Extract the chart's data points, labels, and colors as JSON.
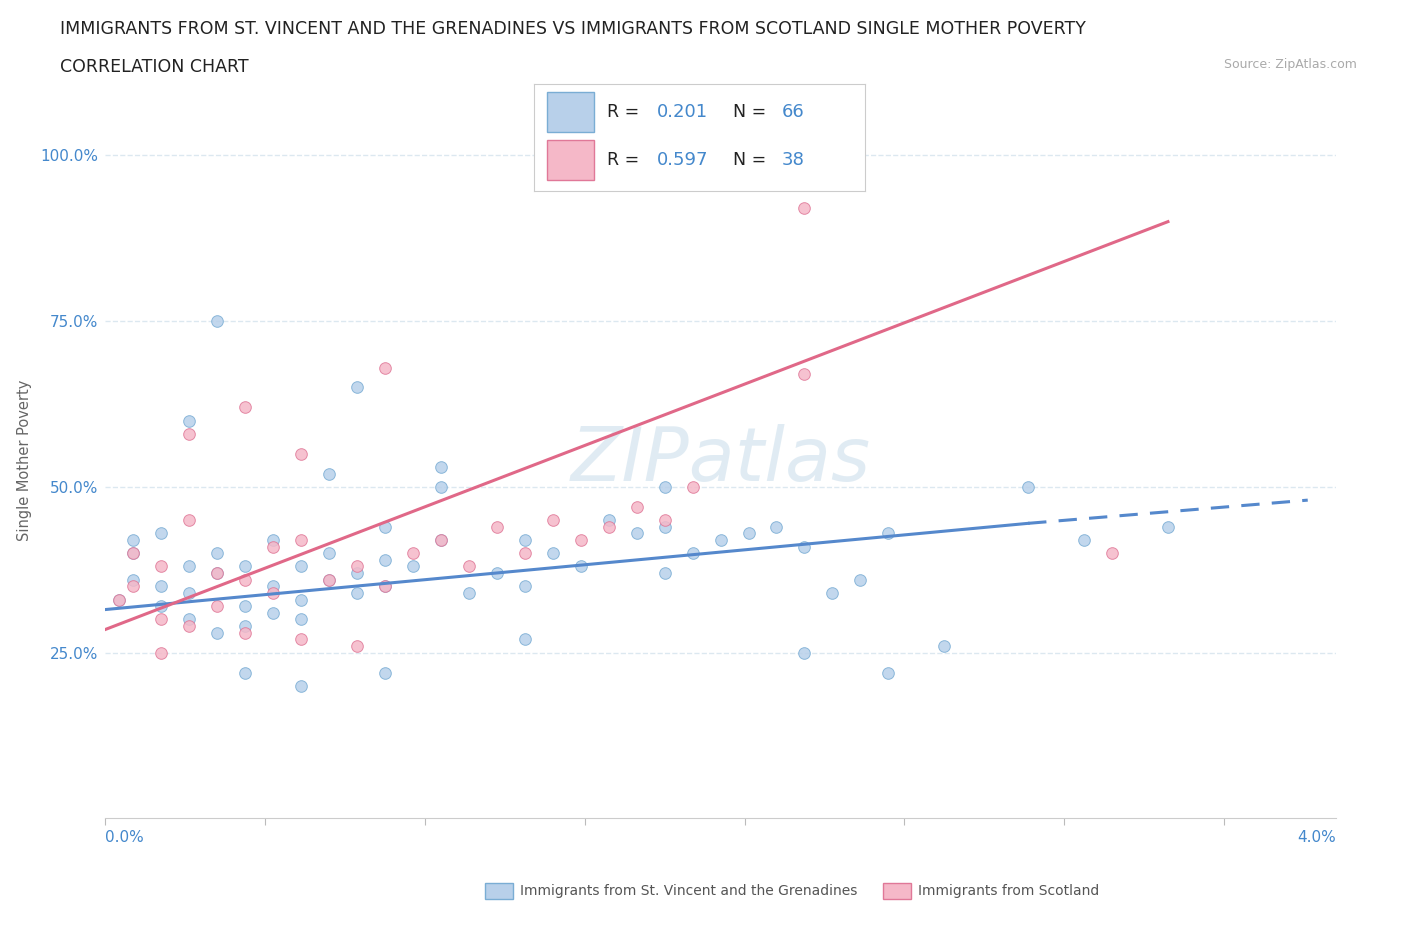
{
  "title_line1": "IMMIGRANTS FROM ST. VINCENT AND THE GRENADINES VS IMMIGRANTS FROM SCOTLAND SINGLE MOTHER POVERTY",
  "title_line2": "CORRELATION CHART",
  "source": "Source: ZipAtlas.com",
  "ylabel": "Single Mother Poverty",
  "legend_r1": "0.201",
  "legend_n1": "66",
  "legend_r2": "0.597",
  "legend_n2": "38",
  "blue_color": "#b8d0ea",
  "pink_color": "#f5b8c8",
  "blue_edge_color": "#7aadd4",
  "pink_edge_color": "#e07898",
  "blue_line_color": "#5588cc",
  "pink_line_color": "#e06888",
  "accent_color": "#4488cc",
  "blue_scatter_x": [
    0.0005,
    0.001,
    0.001,
    0.001,
    0.002,
    0.002,
    0.002,
    0.003,
    0.003,
    0.003,
    0.004,
    0.004,
    0.004,
    0.005,
    0.005,
    0.005,
    0.006,
    0.006,
    0.006,
    0.007,
    0.007,
    0.007,
    0.008,
    0.008,
    0.009,
    0.009,
    0.01,
    0.01,
    0.01,
    0.011,
    0.012,
    0.012,
    0.013,
    0.014,
    0.015,
    0.015,
    0.016,
    0.017,
    0.018,
    0.019,
    0.02,
    0.02,
    0.021,
    0.022,
    0.023,
    0.024,
    0.025,
    0.026,
    0.027,
    0.028,
    0.003,
    0.004,
    0.005,
    0.007,
    0.008,
    0.009,
    0.01,
    0.012,
    0.015,
    0.02,
    0.025,
    0.028,
    0.03,
    0.033,
    0.035,
    0.038
  ],
  "blue_scatter_y": [
    0.33,
    0.36,
    0.4,
    0.42,
    0.32,
    0.35,
    0.43,
    0.3,
    0.34,
    0.38,
    0.28,
    0.37,
    0.4,
    0.29,
    0.32,
    0.38,
    0.31,
    0.35,
    0.42,
    0.3,
    0.33,
    0.38,
    0.36,
    0.4,
    0.34,
    0.37,
    0.35,
    0.39,
    0.44,
    0.38,
    0.42,
    0.5,
    0.34,
    0.37,
    0.35,
    0.42,
    0.4,
    0.38,
    0.45,
    0.43,
    0.37,
    0.44,
    0.4,
    0.42,
    0.43,
    0.44,
    0.41,
    0.34,
    0.36,
    0.43,
    0.6,
    0.75,
    0.22,
    0.2,
    0.52,
    0.65,
    0.22,
    0.53,
    0.27,
    0.5,
    0.25,
    0.22,
    0.26,
    0.5,
    0.42,
    0.44
  ],
  "pink_scatter_x": [
    0.0005,
    0.001,
    0.001,
    0.002,
    0.002,
    0.003,
    0.003,
    0.004,
    0.004,
    0.005,
    0.005,
    0.006,
    0.006,
    0.007,
    0.007,
    0.008,
    0.009,
    0.01,
    0.01,
    0.011,
    0.012,
    0.013,
    0.014,
    0.015,
    0.016,
    0.017,
    0.018,
    0.019,
    0.02,
    0.021,
    0.002,
    0.003,
    0.005,
    0.007,
    0.009,
    0.025,
    0.036,
    0.025
  ],
  "pink_scatter_y": [
    0.33,
    0.35,
    0.4,
    0.3,
    0.38,
    0.45,
    0.58,
    0.32,
    0.37,
    0.36,
    0.62,
    0.34,
    0.41,
    0.55,
    0.42,
    0.36,
    0.38,
    0.35,
    0.68,
    0.4,
    0.42,
    0.38,
    0.44,
    0.4,
    0.45,
    0.42,
    0.44,
    0.47,
    0.45,
    0.5,
    0.25,
    0.29,
    0.28,
    0.27,
    0.26,
    0.67,
    0.4,
    0.92
  ],
  "blue_trend_x0": 0.0,
  "blue_trend_y0": 0.315,
  "blue_trend_x1_solid": 0.033,
  "blue_trend_y1_solid": 0.445,
  "blue_trend_x1_dash": 0.043,
  "blue_trend_y1_dash": 0.48,
  "pink_trend_x0": 0.0,
  "pink_trend_y0": 0.285,
  "pink_trend_x1": 0.038,
  "pink_trend_y1": 0.9,
  "xlim_min": 0.0,
  "xlim_max": 0.044,
  "ylim_min": 0.0,
  "ylim_max": 1.08,
  "ytick_positions": [
    0.25,
    0.5,
    0.75,
    1.0
  ],
  "ytick_labels": [
    "25.0%",
    "50.0%",
    "75.0%",
    "100.0%"
  ],
  "grid_color": "#dce8f0",
  "grid_style": "--",
  "bg_color": "#ffffff",
  "legend_bottom_label1": "Immigrants from St. Vincent and the Grenadines",
  "legend_bottom_label2": "Immigrants from Scotland"
}
